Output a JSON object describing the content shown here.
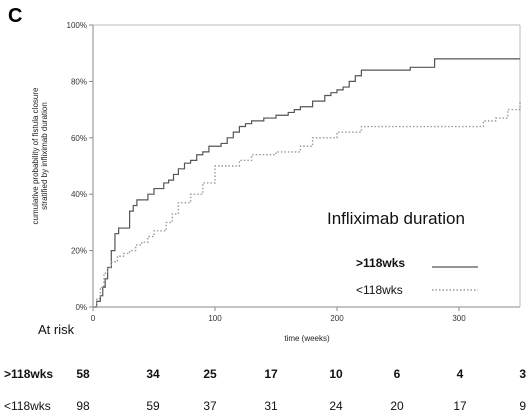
{
  "panel_label": "C",
  "chart_data": {
    "type": "line",
    "step": true,
    "title": "",
    "xlabel": "time (weeks)",
    "ylabel": "cumulative probability of fistula closure stratified by infliximab duration",
    "xlim": [
      0,
      350
    ],
    "ylim": [
      0,
      100
    ],
    "xticks": [
      0,
      100,
      200,
      300
    ],
    "yticks": [
      "0%",
      "20%",
      "40%",
      "60%",
      "80%",
      "100%"
    ],
    "grid": false,
    "legend": {
      "title": "Infliximab duration",
      "placement": "right-middle"
    },
    "series": [
      {
        "name": ">118wks",
        "style": "solid",
        "color": "#555555",
        "x": [
          0,
          3,
          6,
          8,
          10,
          12,
          15,
          18,
          21,
          30,
          33,
          36,
          40,
          45,
          50,
          58,
          62,
          66,
          70,
          75,
          80,
          85,
          90,
          95,
          105,
          110,
          115,
          120,
          125,
          130,
          140,
          150,
          160,
          165,
          170,
          180,
          190,
          195,
          200,
          205,
          210,
          215,
          220,
          260,
          280,
          350
        ],
        "y": [
          0,
          2,
          4,
          7,
          10,
          14,
          20,
          26,
          28,
          34,
          36,
          38,
          38,
          40,
          42,
          44,
          45,
          47,
          49,
          51,
          52,
          54,
          55,
          57,
          58,
          60,
          62,
          64,
          65,
          66,
          67,
          68,
          69,
          70,
          71,
          73,
          75,
          76,
          77,
          78,
          80,
          82,
          84,
          85,
          88,
          88
        ]
      },
      {
        "name": "<118wks",
        "style": "dotted",
        "color": "#999999",
        "x": [
          0,
          3,
          6,
          9,
          12,
          15,
          20,
          25,
          30,
          35,
          40,
          45,
          50,
          60,
          65,
          70,
          80,
          90,
          100,
          120,
          130,
          150,
          170,
          180,
          200,
          220,
          240,
          260,
          300,
          320,
          330,
          340,
          350
        ],
        "y": [
          0,
          3,
          7,
          12,
          14,
          16,
          18,
          19,
          20,
          22,
          23,
          25,
          27,
          30,
          33,
          37,
          40,
          44,
          50,
          52,
          54,
          55,
          57,
          60,
          62,
          64,
          64,
          64,
          64,
          66,
          67,
          70,
          73
        ]
      }
    ],
    "at_risk": {
      "label": "At risk",
      "times": [
        0,
        50,
        100,
        150,
        200,
        250,
        300,
        350
      ],
      "rows": [
        {
          "name": ">118wks",
          "values": [
            "58",
            "34",
            "25",
            "17",
            "10",
            "6",
            "4",
            "3"
          ]
        },
        {
          "name": "<118wks",
          "values": [
            "98",
            "59",
            "37",
            "31",
            "24",
            "20",
            "17",
            "9"
          ]
        }
      ]
    }
  }
}
